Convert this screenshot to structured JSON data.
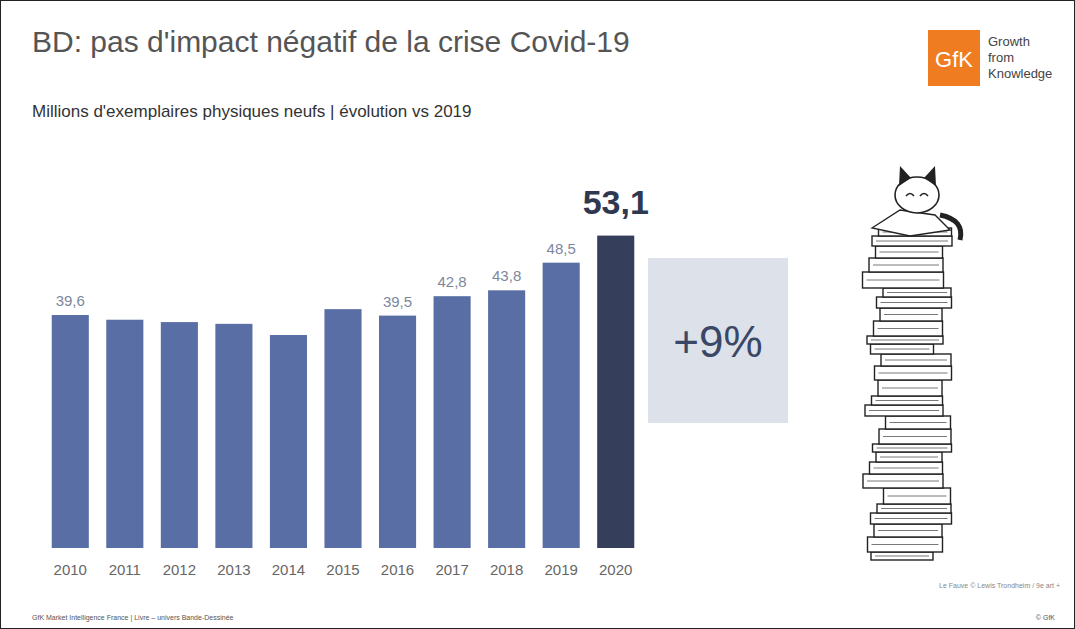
{
  "chart_data": {
    "type": "bar",
    "title": "BD: pas d'impact négatif de la crise Covid-19",
    "subtitle": "Millions d'exemplaires physiques neufs | évolution vs 2019",
    "categories": [
      "2010",
      "2011",
      "2012",
      "2013",
      "2014",
      "2015",
      "2016",
      "2017",
      "2018",
      "2019",
      "2020"
    ],
    "values": [
      39.6,
      38.8,
      38.4,
      38.1,
      36.2,
      40.6,
      39.5,
      42.8,
      43.8,
      48.5,
      53.1
    ],
    "value_labels": [
      "39,6",
      null,
      null,
      null,
      null,
      null,
      "39,5",
      "42,8",
      "43,8",
      "48,5",
      "53,1"
    ],
    "data_labels": true,
    "colors": [
      "#5a6ea6",
      "#5a6ea6",
      "#5a6ea6",
      "#5a6ea6",
      "#5a6ea6",
      "#5a6ea6",
      "#5a6ea6",
      "#5a6ea6",
      "#5a6ea6",
      "#5a6ea6",
      "#353f5c"
    ],
    "ylim": [
      0,
      60
    ],
    "tick_labels": "x",
    "grid": false,
    "annotations": [
      "+9%"
    ]
  },
  "logo": {
    "brand": "GfK",
    "tagline": "Growth from Knowledge"
  },
  "footer": {
    "source": "GfK Market Intelligence France | Livre – univers Bande-Dessinée",
    "copyright": "© GfK",
    "credit": "Le Fauve © Lewis Trondheim / 9e art +"
  }
}
